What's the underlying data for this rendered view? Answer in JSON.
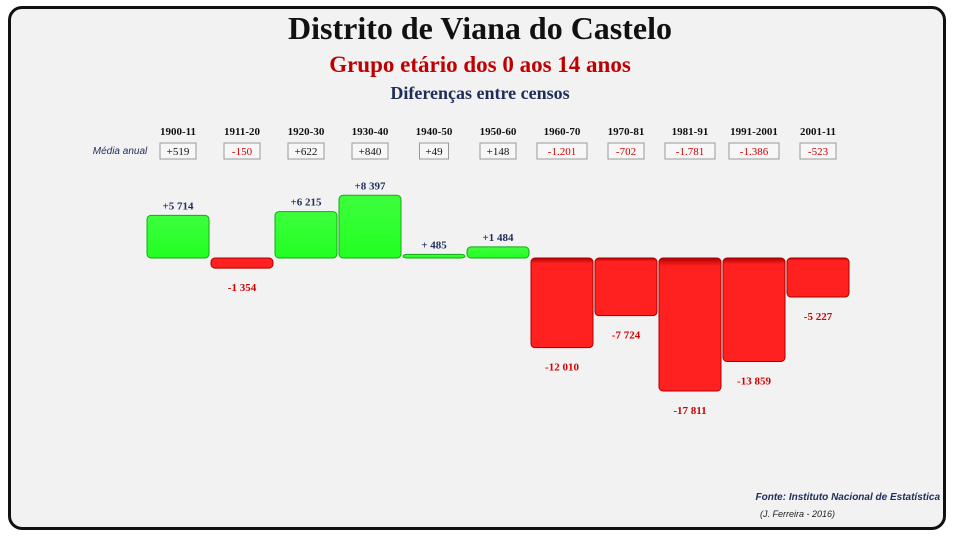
{
  "title": "Distrito de Viana do Castelo",
  "subtitle": "Grupo etário dos 0 aos 14 anos",
  "sub_subtitle": "Diferenças entre censos",
  "media_label": "Média anual",
  "source": "Fonte: Instituto Nacional de Estatística",
  "credit": "(J. Ferreira - 2016)",
  "colors": {
    "positive": "#22ff22",
    "negative": "#ff2020",
    "positive_label": "#1f2d5a",
    "negative_label": "#d40000"
  },
  "chart_data": {
    "type": "bar",
    "title": "Distrito de Viana do Castelo",
    "categories": [
      "1900-11",
      "1911-20",
      "1920-30",
      "1930-40",
      "1940-50",
      "1950-60",
      "1960-70",
      "1970-81",
      "1981-91",
      "1991-2001",
      "2001-11"
    ],
    "values": [
      5714,
      -1354,
      6215,
      8397,
      485,
      1484,
      -12010,
      -7724,
      -17811,
      -13859,
      -5227
    ],
    "value_labels": [
      "+5 714",
      "-1 354",
      "+6 215",
      "+8 397",
      "+ 485",
      "+1 484",
      "-12 010",
      "-7 724",
      "-17 811",
      "-13 859",
      "-5 227"
    ],
    "annual_average": [
      "+519",
      "-150",
      "+622",
      "+840",
      "+49",
      "+148",
      "-1.201",
      "-702",
      "-1.781",
      "-1.386",
      "-523"
    ],
    "xlabel": "",
    "ylabel": ""
  }
}
